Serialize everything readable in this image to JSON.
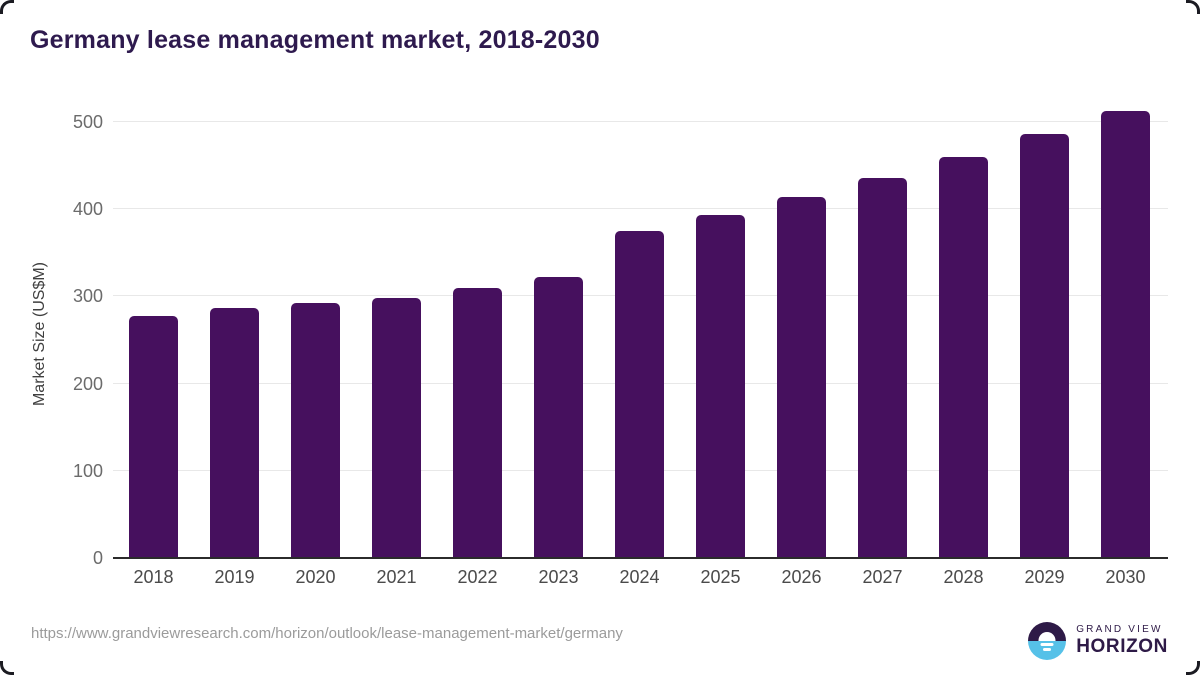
{
  "title": "Germany lease management market, 2018-2030",
  "chart_data": {
    "type": "bar",
    "title": "Germany lease management market, 2018-2030",
    "categories": [
      "2018",
      "2019",
      "2020",
      "2021",
      "2022",
      "2023",
      "2024",
      "2025",
      "2026",
      "2027",
      "2028",
      "2029",
      "2030"
    ],
    "values": [
      277,
      287,
      292,
      298,
      309,
      322,
      375,
      393,
      414,
      436,
      460,
      486,
      513
    ],
    "xlabel": "",
    "ylabel": "Market Size (US$M)",
    "ylim": [
      0,
      500
    ],
    "yticks": [
      0,
      100,
      200,
      300,
      400,
      500
    ],
    "grid": true,
    "legend": false,
    "bar_color": "#46105e"
  },
  "footer": {
    "source_url": "https://www.grandviewresearch.com/horizon/outlook/lease-management-market/germany",
    "logo": {
      "line1": "GRAND VIEW",
      "line2": "HORIZON"
    }
  },
  "colors": {
    "bar": "#46105e",
    "title_text": "#2e1a4e",
    "axis_line": "#2b2b2b",
    "gridline": "#e8e8e8",
    "y_tick_label": "#6b6b6b",
    "x_tick_label": "#4a4a4a",
    "url_text": "#9b9b9b",
    "logo_dark": "#2e1a47",
    "logo_blue": "#56c1e8"
  }
}
